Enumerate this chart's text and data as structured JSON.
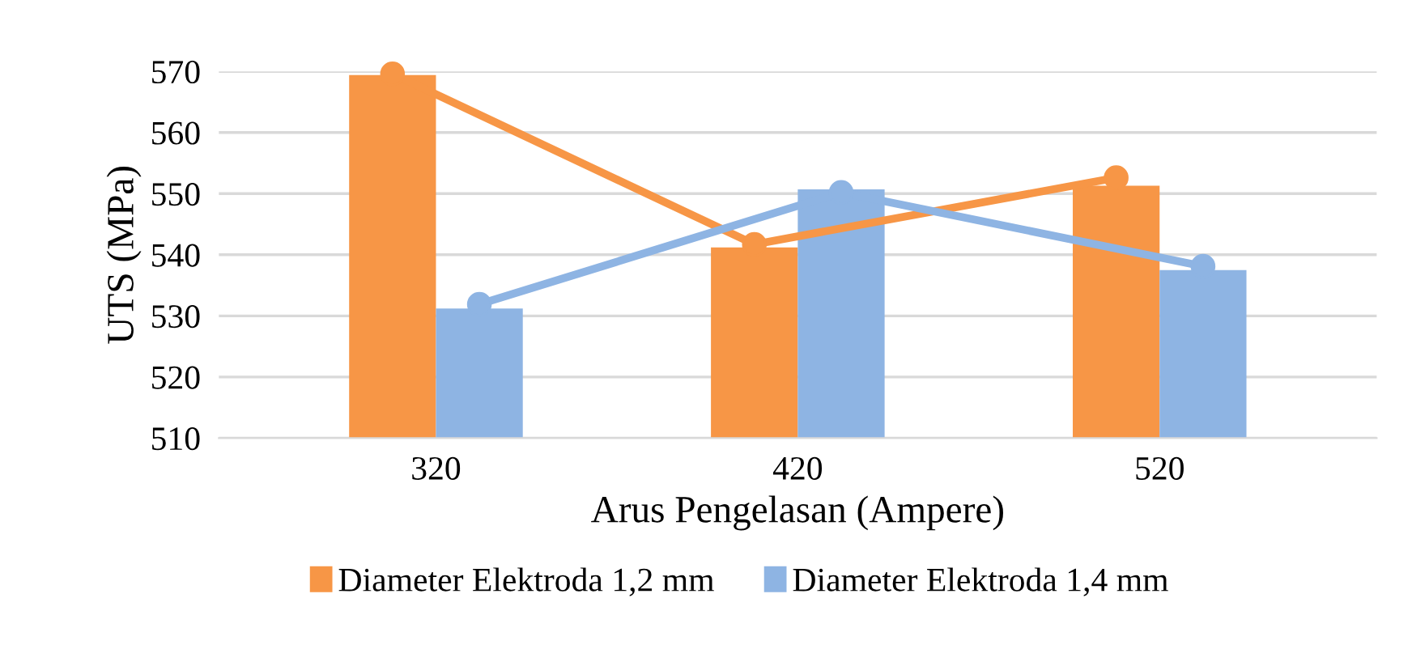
{
  "chart_data": {
    "type": "bar",
    "xlabel": "Arus Pengelasan (Ampere)",
    "ylabel": "UTS (MPa)",
    "categories": [
      "320",
      "420",
      "520"
    ],
    "series": [
      {
        "name": "Diameter Elektroda 1,2 mm",
        "color": "#f79646",
        "values": [
          569.4,
          541.2,
          551.3
        ]
      },
      {
        "name": "Diameter Elektroda 1,4 mm",
        "color": "#8eb4e3",
        "values": [
          531.2,
          550.7,
          537.5
        ]
      },
      {
        "type": "line",
        "color": "#f79646",
        "values": [
          569.6,
          541.7,
          552.6
        ]
      },
      {
        "type": "line",
        "color": "#8eb4e3",
        "values": [
          531.9,
          550.2,
          538.1
        ]
      }
    ],
    "ylim": [
      510,
      570
    ],
    "yticks": [
      510,
      520,
      530,
      540,
      550,
      560,
      570
    ],
    "grid": "y",
    "legend": "bottom",
    "marker": "circle"
  }
}
